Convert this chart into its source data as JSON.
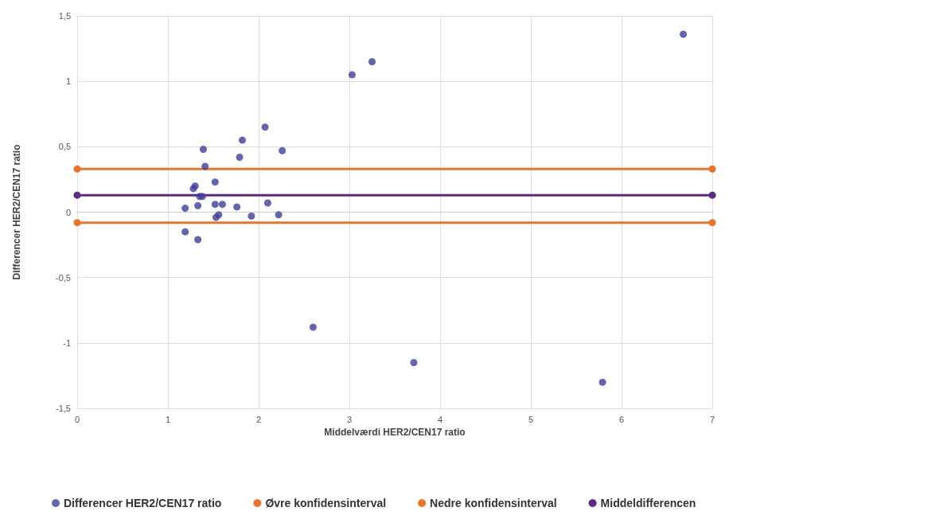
{
  "chart_data": {
    "type": "scatter",
    "xlabel": "Middelværdi HER2/CEN17 ratio",
    "ylabel": "Differencer HER2/CEN17 ratio",
    "xlim": [
      0,
      7
    ],
    "xticks": [
      0,
      1,
      2,
      3,
      4,
      5,
      6,
      7
    ],
    "ylim": [
      -1.5,
      1.5
    ],
    "yticks": [
      {
        "value": -1.5,
        "label": "-1,5"
      },
      -1,
      {
        "value": -0.5,
        "label": "-0,5"
      },
      0,
      {
        "value": 0.5,
        "label": "0,5"
      },
      1,
      {
        "value": 1.5,
        "label": "1,5"
      }
    ],
    "grid": true,
    "legend": "bottom",
    "marker": "circle",
    "series": [
      {
        "name": "Differencer HER2/CEN17 ratio",
        "color": "#3f3f99",
        "x": [
          1.19,
          1.19,
          1.28,
          1.3,
          1.33,
          1.33,
          1.35,
          1.38,
          1.39,
          1.41,
          1.52,
          1.52,
          1.53,
          1.56,
          1.6,
          1.76,
          1.79,
          1.82,
          1.92,
          2.07,
          2.1,
          2.22,
          2.26,
          2.6,
          3.03,
          3.25,
          3.71,
          5.79,
          6.68
        ],
        "values": [
          0.03,
          -0.15,
          0.18,
          0.2,
          0.05,
          -0.21,
          0.12,
          0.12,
          0.48,
          0.35,
          0.23,
          0.06,
          -0.04,
          -0.02,
          0.06,
          0.04,
          0.42,
          0.55,
          -0.03,
          0.65,
          0.07,
          -0.02,
          0.47,
          -0.88,
          1.05,
          1.15,
          -1.15,
          -1.3,
          1.36
        ]
      },
      {
        "name": "Øvre konfidensinterval",
        "color": "#e8762c",
        "type": "line",
        "x": [
          0,
          7
        ],
        "values": [
          0.33,
          0.33
        ]
      },
      {
        "name": "Nedre konfidensinterval",
        "color": "#e8762c",
        "type": "line",
        "x": [
          0,
          7
        ],
        "values": [
          -0.08,
          -0.08
        ]
      },
      {
        "name": "Middeldifferencen",
        "color": "#5b2a86",
        "type": "line",
        "x": [
          0,
          7
        ],
        "values": [
          0.13,
          0.13
        ]
      }
    ]
  }
}
